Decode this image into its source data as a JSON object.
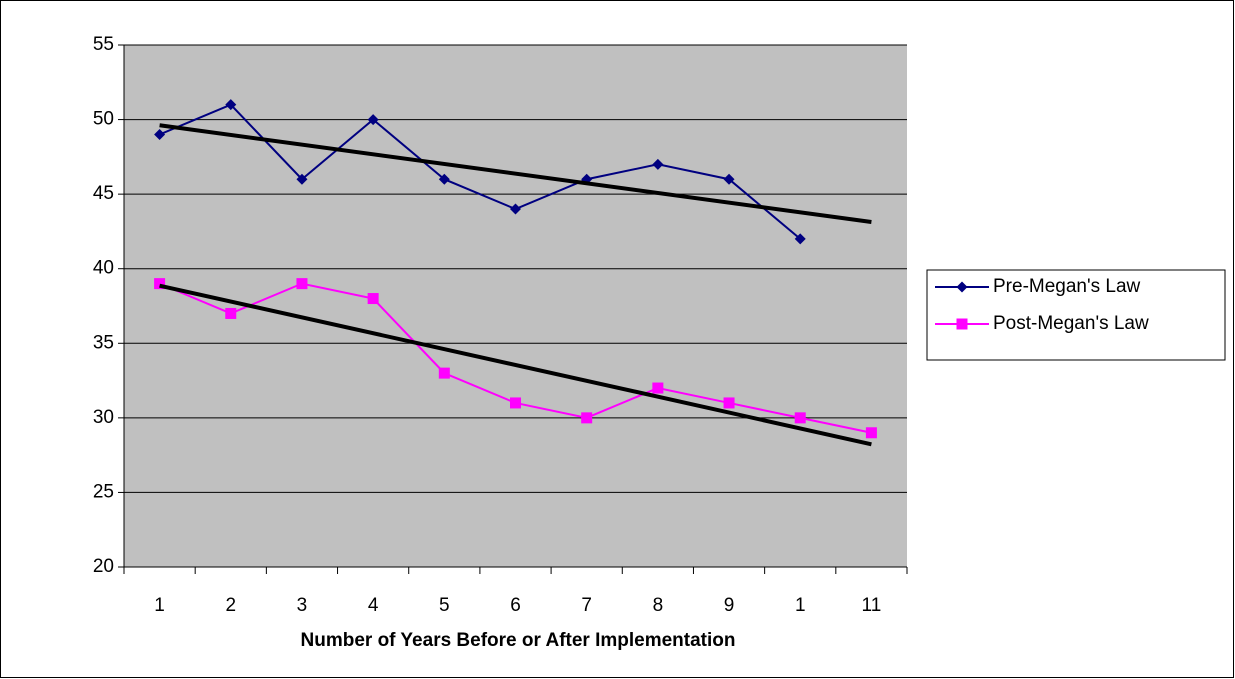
{
  "chart_data": {
    "type": "line",
    "x_label": "Number of Years Before or After Implementation",
    "categories": [
      "1",
      "2",
      "3",
      "4",
      "5",
      "6",
      "7",
      "8",
      "9",
      "1",
      "11"
    ],
    "series": [
      {
        "name": "Pre-Megan's Law",
        "color": "#000080",
        "marker": "diamond",
        "trendline": true,
        "values": [
          49,
          51,
          46,
          50,
          46,
          44,
          46,
          47,
          46,
          42,
          null
        ]
      },
      {
        "name": "Post-Megan's Law",
        "color": "#ff00ff",
        "marker": "square",
        "trendline": true,
        "values": [
          39,
          37,
          39,
          38,
          33,
          31,
          30,
          32,
          31,
          30,
          29
        ]
      }
    ],
    "ylim": [
      20,
      55
    ],
    "yticks": [
      20,
      25,
      30,
      35,
      40,
      45,
      50,
      55
    ],
    "grid": true,
    "legend": "right",
    "plot_background": "#c0c0c0"
  }
}
